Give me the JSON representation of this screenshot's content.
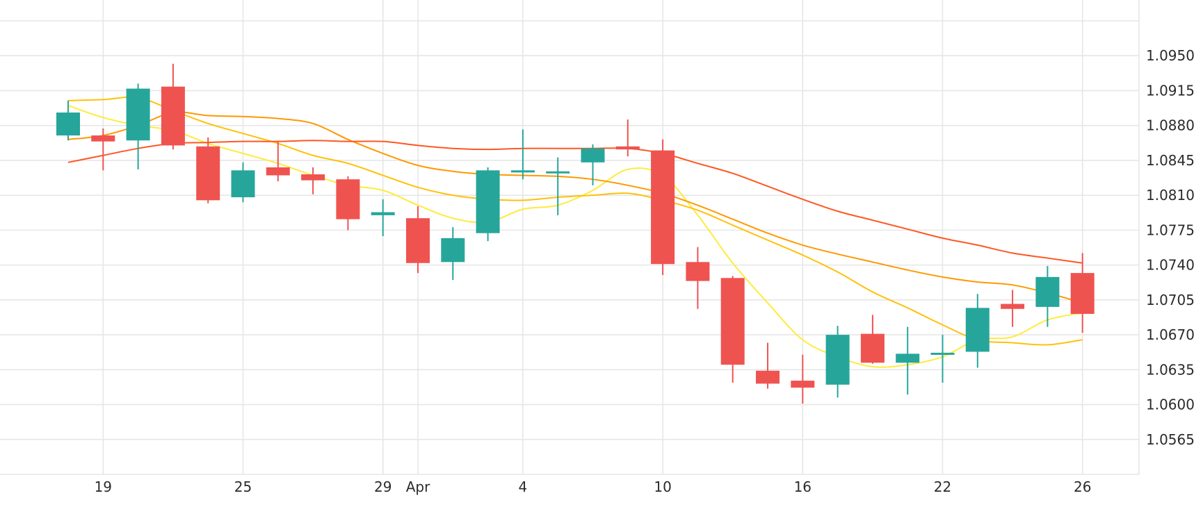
{
  "colors": {
    "up": "#26a69a",
    "down": "#ef5350",
    "grid": "#e6e6e6",
    "text": "#2b2b2b",
    "background": "#ffffff",
    "ma_lines": [
      "#ffeb3b",
      "#ffc107",
      "#ff9800",
      "#ff5722"
    ]
  },
  "chart_data": {
    "type": "candlestick",
    "grid": true,
    "y_axis_position": "right",
    "ylim": [
      1.053,
      1.0985
    ],
    "yticks": [
      "1.0950",
      "1.0915",
      "1.0880",
      "1.0845",
      "1.0810",
      "1.0775",
      "1.0740",
      "1.0705",
      "1.0670",
      "1.0635",
      "1.0600",
      "1.0565"
    ],
    "xticks": [
      {
        "label": "19",
        "idx": 1
      },
      {
        "label": "25",
        "idx": 5
      },
      {
        "label": "29",
        "idx": 9
      },
      {
        "label": "Apr",
        "idx": 10
      },
      {
        "label": "4",
        "idx": 13
      },
      {
        "label": "10",
        "idx": 17
      },
      {
        "label": "16",
        "idx": 21
      },
      {
        "label": "22",
        "idx": 25
      },
      {
        "label": "26",
        "idx": 29
      }
    ],
    "candles": [
      {
        "o": 1.087,
        "h": 1.0905,
        "l": 1.0865,
        "c": 1.0893
      },
      {
        "o": 1.087,
        "h": 1.0877,
        "l": 1.0835,
        "c": 1.0864
      },
      {
        "o": 1.0865,
        "h": 1.0922,
        "l": 1.0836,
        "c": 1.0917
      },
      {
        "o": 1.0919,
        "h": 1.0942,
        "l": 1.0856,
        "c": 1.086
      },
      {
        "o": 1.0859,
        "h": 1.0868,
        "l": 1.0802,
        "c": 1.0805
      },
      {
        "o": 1.0808,
        "h": 1.0843,
        "l": 1.0803,
        "c": 1.0835
      },
      {
        "o": 1.0838,
        "h": 1.0864,
        "l": 1.0824,
        "c": 1.083
      },
      {
        "o": 1.0831,
        "h": 1.0838,
        "l": 1.0811,
        "c": 1.0825
      },
      {
        "o": 1.0826,
        "h": 1.0829,
        "l": 1.0775,
        "c": 1.0786
      },
      {
        "o": 1.079,
        "h": 1.0806,
        "l": 1.0769,
        "c": 1.0793
      },
      {
        "o": 1.0787,
        "h": 1.0799,
        "l": 1.0732,
        "c": 1.0742
      },
      {
        "o": 1.0743,
        "h": 1.0778,
        "l": 1.0725,
        "c": 1.0767
      },
      {
        "o": 1.0772,
        "h": 1.0838,
        "l": 1.0764,
        "c": 1.0835
      },
      {
        "o": 1.0833,
        "h": 1.0876,
        "l": 1.0826,
        "c": 1.0835
      },
      {
        "o": 1.0834,
        "h": 1.0848,
        "l": 1.079,
        "c": 1.0834
      },
      {
        "o": 1.0843,
        "h": 1.0861,
        "l": 1.082,
        "c": 1.0857
      },
      {
        "o": 1.0859,
        "h": 1.0886,
        "l": 1.0849,
        "c": 1.0856
      },
      {
        "o": 1.0855,
        "h": 1.0866,
        "l": 1.073,
        "c": 1.0741
      },
      {
        "o": 1.0743,
        "h": 1.0758,
        "l": 1.0696,
        "c": 1.0724
      },
      {
        "o": 1.0727,
        "h": 1.0729,
        "l": 1.0622,
        "c": 1.064
      },
      {
        "o": 1.0634,
        "h": 1.0662,
        "l": 1.0616,
        "c": 1.0621
      },
      {
        "o": 1.0624,
        "h": 1.065,
        "l": 1.0601,
        "c": 1.0617
      },
      {
        "o": 1.062,
        "h": 1.0679,
        "l": 1.0607,
        "c": 1.067
      },
      {
        "o": 1.0671,
        "h": 1.069,
        "l": 1.0641,
        "c": 1.0642
      },
      {
        "o": 1.0642,
        "h": 1.0678,
        "l": 1.061,
        "c": 1.0651
      },
      {
        "o": 1.0652,
        "h": 1.067,
        "l": 1.0622,
        "c": 1.0652
      },
      {
        "o": 1.0653,
        "h": 1.0711,
        "l": 1.0637,
        "c": 1.0697
      },
      {
        "o": 1.0701,
        "h": 1.0715,
        "l": 1.0678,
        "c": 1.0696
      },
      {
        "o": 1.0698,
        "h": 1.0739,
        "l": 1.0678,
        "c": 1.0728
      },
      {
        "o": 1.0732,
        "h": 1.0752,
        "l": 1.0672,
        "c": 1.0691
      }
    ],
    "series": [
      {
        "values": [
          1.09,
          1.0888,
          1.088,
          1.0875,
          1.0862,
          1.0852,
          1.0842,
          1.083,
          1.082,
          1.0815,
          1.08,
          1.0787,
          1.0783,
          1.0796,
          1.08,
          1.0815,
          1.0836,
          1.083,
          1.079,
          1.0742,
          1.0702,
          1.0665,
          1.0648,
          1.0638,
          1.064,
          1.0648,
          1.0665,
          1.0668,
          1.0685,
          1.0692
        ]
      },
      {
        "values": [
          1.0905,
          1.0906,
          1.0908,
          1.0895,
          1.0882,
          1.0872,
          1.0862,
          1.085,
          1.0842,
          1.083,
          1.0818,
          1.081,
          1.0806,
          1.0805,
          1.0808,
          1.081,
          1.0812,
          1.0805,
          1.0795,
          1.078,
          1.0765,
          1.075,
          1.0733,
          1.0713,
          1.0697,
          1.068,
          1.0665,
          1.0662,
          1.066,
          1.0665
        ]
      },
      {
        "values": [
          1.0866,
          1.087,
          1.088,
          1.0893,
          1.089,
          1.0889,
          1.0887,
          1.0882,
          1.0866,
          1.0852,
          1.084,
          1.0834,
          1.0831,
          1.083,
          1.0829,
          1.0826,
          1.082,
          1.0812,
          1.08,
          1.0786,
          1.0772,
          1.076,
          1.0751,
          1.0743,
          1.0735,
          1.0728,
          1.0723,
          1.072,
          1.0712,
          1.0702
        ]
      },
      {
        "values": [
          1.0843,
          1.085,
          1.0857,
          1.0862,
          1.0863,
          1.0864,
          1.0864,
          1.0865,
          1.0864,
          1.0864,
          1.086,
          1.0857,
          1.0856,
          1.0857,
          1.0857,
          1.0857,
          1.0857,
          1.0852,
          1.0842,
          1.0832,
          1.0819,
          1.0806,
          1.0794,
          1.0785,
          1.0776,
          1.0767,
          1.076,
          1.0752,
          1.0747,
          1.0742
        ]
      }
    ]
  }
}
